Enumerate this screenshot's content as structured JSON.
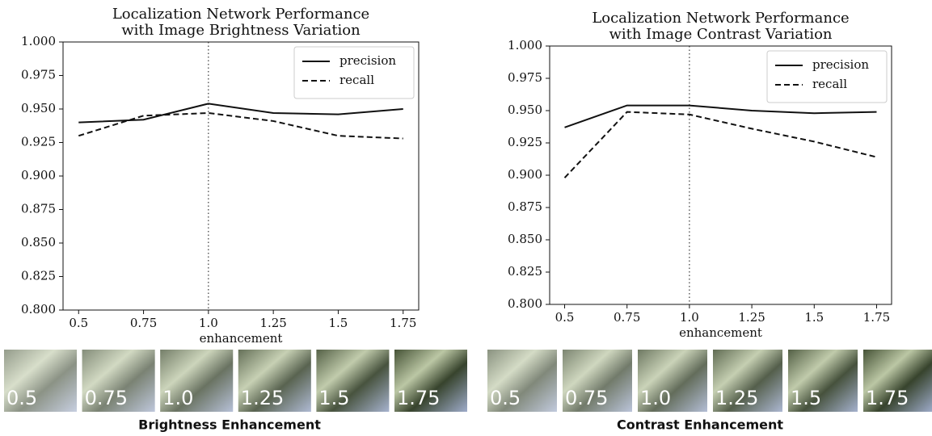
{
  "chart_data": [
    {
      "type": "line",
      "title": [
        "Localization Network Performance",
        "with Image Brightness Variation"
      ],
      "x_label": "enhancement",
      "x": [
        0.5,
        0.75,
        1.0,
        1.25,
        1.5,
        1.75
      ],
      "series": [
        {
          "name": "precision",
          "color": "#111111",
          "dash": "solid",
          "values": [
            0.94,
            0.942,
            0.954,
            0.947,
            0.946,
            0.95
          ]
        },
        {
          "name": "recall",
          "color": "#111111",
          "dash": "dashed",
          "values": [
            0.93,
            0.945,
            0.947,
            0.941,
            0.93,
            0.928
          ]
        }
      ],
      "xlim": [
        0.44,
        1.81
      ],
      "xticks": [
        0.5,
        0.75,
        {
          "value": 1,
          "label": "1.0"
        },
        1.25,
        1.5,
        1.75
      ],
      "ylim": [
        0.8,
        1.0
      ],
      "yticks": [
        {
          "value": 0.8,
          "label": "0.800"
        },
        {
          "value": 0.825,
          "label": "0.825"
        },
        {
          "value": 0.85,
          "label": "0.850"
        },
        {
          "value": 0.875,
          "label": "0.875"
        },
        {
          "value": 0.9,
          "label": "0.900"
        },
        {
          "value": 0.925,
          "label": "0.925"
        },
        {
          "value": 0.95,
          "label": "0.950"
        },
        {
          "value": 0.975,
          "label": "0.975"
        },
        {
          "value": 1,
          "label": "1.000"
        }
      ],
      "vline": 1,
      "legend": "upper right",
      "grid": false
    },
    {
      "type": "line",
      "title": [
        "Localization Network Performance",
        "with Image Contrast Variation"
      ],
      "x_label": "enhancement",
      "x": [
        0.5,
        0.75,
        1.0,
        1.25,
        1.5,
        1.75
      ],
      "series": [
        {
          "name": "precision",
          "color": "#111111",
          "dash": "solid",
          "values": [
            0.937,
            0.954,
            0.954,
            0.95,
            0.948,
            0.949
          ]
        },
        {
          "name": "recall",
          "color": "#111111",
          "dash": "dashed",
          "values": [
            0.898,
            0.949,
            0.947,
            0.936,
            0.926,
            0.914
          ]
        }
      ],
      "xlim": [
        0.44,
        1.81
      ],
      "xticks": [
        0.5,
        0.75,
        {
          "value": 1,
          "label": "1.0"
        },
        1.25,
        1.5,
        1.75
      ],
      "ylim": [
        0.8,
        1.0
      ],
      "yticks": [
        {
          "value": 0.8,
          "label": "0.800"
        },
        {
          "value": 0.825,
          "label": "0.825"
        },
        {
          "value": 0.85,
          "label": "0.850"
        },
        {
          "value": 0.875,
          "label": "0.875"
        },
        {
          "value": 0.9,
          "label": "0.900"
        },
        {
          "value": 0.925,
          "label": "0.925"
        },
        {
          "value": 0.95,
          "label": "0.950"
        },
        {
          "value": 0.975,
          "label": "0.975"
        },
        {
          "value": 1,
          "label": "1.000"
        }
      ],
      "vline": 1,
      "legend": "upper right",
      "grid": false
    }
  ],
  "strips": [
    {
      "thumbnails": [
        "0.5",
        "0.75",
        "1.0",
        "1.25",
        "1.5",
        "1.75"
      ],
      "caption": "Brightness Enhancement"
    },
    {
      "thumbnails": [
        "0.5",
        "0.75",
        "1.0",
        "1.25",
        "1.5",
        "1.75"
      ],
      "caption": "Contrast Enhancement"
    }
  ]
}
